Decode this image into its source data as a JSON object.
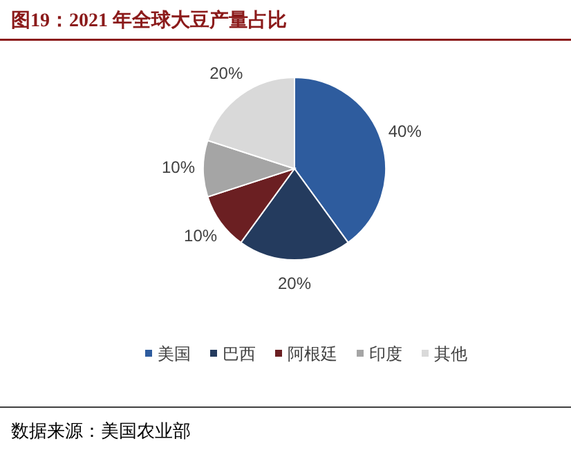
{
  "chart_data": {
    "type": "pie",
    "title": "图19：2021 年全球大豆产量占比",
    "categories": [
      "美国",
      "巴西",
      "阿根廷",
      "印度",
      "其他"
    ],
    "values": [
      40,
      20,
      10,
      10,
      20
    ],
    "colors": [
      "#2e5c9e",
      "#243b5e",
      "#6b1f22",
      "#a5a5a5",
      "#d9d9d9"
    ],
    "value_labels": [
      "40%",
      "20%",
      "10%",
      "10%",
      "20%"
    ],
    "legend": "bottom",
    "annotations": [
      "数据来源：美国农业部"
    ]
  }
}
